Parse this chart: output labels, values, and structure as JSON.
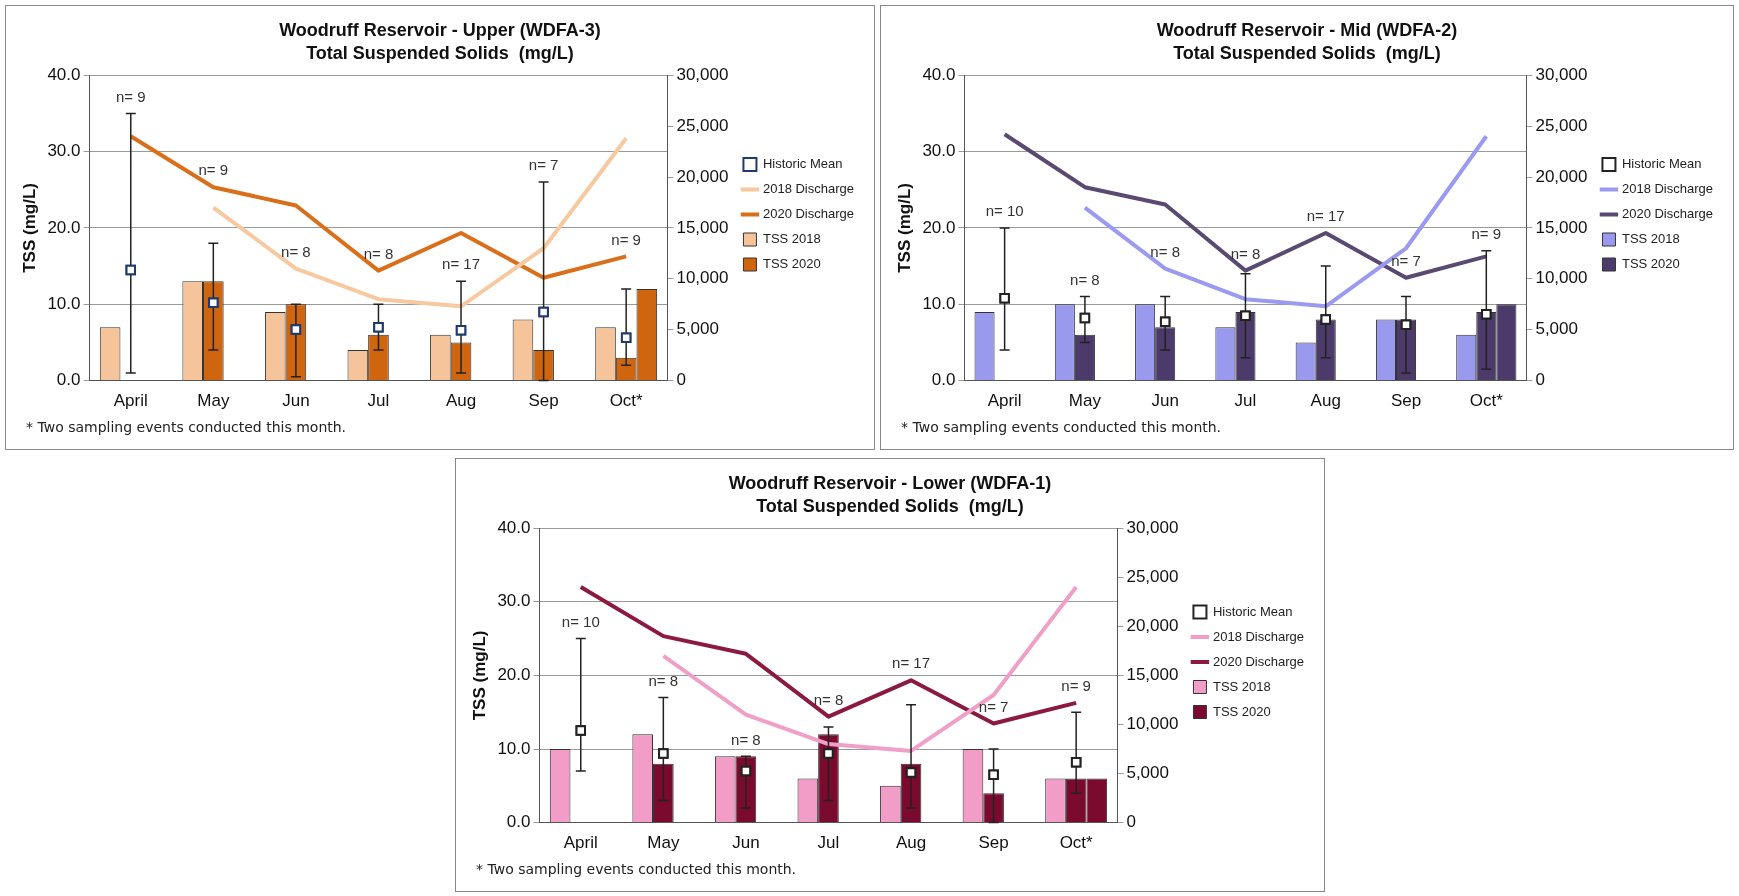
{
  "chart_data": [
    {
      "type": "bar",
      "title": "Woodruff Reservoir - Upper (WDFA-3)",
      "subtitle": "Total Suspended Solids  (mg/L)",
      "ylabel": "TSS (mg/L)",
      "categories": [
        "April",
        "May",
        "Jun",
        "Jul",
        "Aug",
        "Sep",
        "Oct*"
      ],
      "ylim": [
        0,
        40
      ],
      "yticks": [
        {
          "value": 0,
          "label": "0.0"
        },
        {
          "value": 10,
          "label": "10.0"
        },
        {
          "value": 20,
          "label": "20.0"
        },
        {
          "value": 30,
          "label": "30.0"
        },
        {
          "value": 40,
          "label": "40.0"
        }
      ],
      "y2lim": [
        0,
        30000
      ],
      "y2ticks": [
        {
          "value": 0,
          "label": "0"
        },
        {
          "value": 5000,
          "label": "5,000"
        },
        {
          "value": 10000,
          "label": "10,000"
        },
        {
          "value": 15000,
          "label": "15,000"
        },
        {
          "value": 20000,
          "label": "20,000"
        },
        {
          "value": 25000,
          "label": "25,000"
        },
        {
          "value": 30000,
          "label": "30,000"
        }
      ],
      "grid": "y",
      "legend": "right",
      "series": [
        {
          "name": "TSS 2018",
          "color": "#f5c49a",
          "values": [
            7,
            13,
            9,
            4,
            6,
            8,
            7
          ]
        },
        {
          "name": "TSS 2020",
          "color": "#d0650f",
          "values": [
            null,
            13,
            10,
            6,
            5,
            4,
            3
          ]
        },
        {
          "color": "#d0650f",
          "values": [
            null,
            null,
            null,
            null,
            null,
            null,
            12
          ]
        },
        {
          "name": "Historic Mean",
          "type": "scatter",
          "marker": "square",
          "color": "#1f3a6e",
          "x": [
            "April",
            "May",
            "Jun",
            "Jul",
            "Aug",
            "Sep",
            "Oct*"
          ],
          "values": [
            14.5,
            10.2,
            6.7,
            7,
            6.6,
            9,
            5.6
          ],
          "errors": [
            [
              1,
              35
            ],
            [
              4,
              18
            ],
            [
              0.5,
              10
            ],
            [
              4,
              10
            ],
            [
              1,
              13
            ],
            [
              0,
              26
            ],
            [
              2,
              12
            ]
          ]
        },
        {
          "name": "2018 Discharge",
          "type": "line",
          "axis": "y2",
          "color": "#f7c9a0",
          "values": [
            null,
            17000,
            11000,
            8000,
            7300,
            13000,
            23800
          ]
        },
        {
          "name": "2020 Discharge",
          "type": "line",
          "axis": "y2",
          "color": "#d96f1a",
          "values": [
            24000,
            19000,
            17200,
            10800,
            14500,
            10100,
            12200
          ]
        }
      ],
      "annotations": [
        "n= 9",
        "n= 9",
        "n= 8",
        "n= 8",
        "n= 17",
        "n= 7",
        "n= 9",
        "* Two sampling events conducted this month."
      ]
    },
    {
      "type": "bar",
      "title": "Woodruff Reservoir - Mid (WDFA-2)",
      "subtitle": "Total Suspended Solids  (mg/L)",
      "ylabel": "TSS (mg/L)",
      "categories": [
        "April",
        "May",
        "Jun",
        "Jul",
        "Aug",
        "Sep",
        "Oct*"
      ],
      "ylim": [
        0,
        40
      ],
      "yticks": [
        {
          "value": 0,
          "label": "0.0"
        },
        {
          "value": 10,
          "label": "10.0"
        },
        {
          "value": 20,
          "label": "20.0"
        },
        {
          "value": 30,
          "label": "30.0"
        },
        {
          "value": 40,
          "label": "40.0"
        }
      ],
      "y2lim": [
        0,
        30000
      ],
      "y2ticks": [
        {
          "value": 0,
          "label": "0"
        },
        {
          "value": 5000,
          "label": "5,000"
        },
        {
          "value": 10000,
          "label": "10,000"
        },
        {
          "value": 15000,
          "label": "15,000"
        },
        {
          "value": 20000,
          "label": "20,000"
        },
        {
          "value": 25000,
          "label": "25,000"
        },
        {
          "value": 30000,
          "label": "30,000"
        }
      ],
      "grid": "y",
      "legend": "right",
      "series": [
        {
          "name": "TSS 2018",
          "color": "#9999ee",
          "values": [
            9,
            10,
            10,
            7,
            5,
            8,
            6
          ]
        },
        {
          "name": "TSS 2020",
          "color": "#4b3a6a",
          "values": [
            null,
            6,
            7,
            9,
            8,
            8,
            9
          ]
        },
        {
          "color": "#4b3a6a",
          "values": [
            null,
            null,
            null,
            null,
            null,
            null,
            10
          ]
        },
        {
          "name": "Historic Mean",
          "type": "scatter",
          "marker": "square",
          "color": "#222222",
          "x": [
            "April",
            "May",
            "Jun",
            "Jul",
            "Aug",
            "Sep",
            "Oct*"
          ],
          "values": [
            10.8,
            8.2,
            7.7,
            8.5,
            8,
            7.3,
            8.7
          ],
          "errors": [
            [
              4,
              20
            ],
            [
              5,
              11
            ],
            [
              4,
              11
            ],
            [
              3,
              14
            ],
            [
              3,
              15
            ],
            [
              1,
              11
            ],
            [
              1.5,
              17
            ]
          ]
        },
        {
          "name": "2018 Discharge",
          "type": "line",
          "axis": "y2",
          "color": "#9a9af0",
          "values": [
            null,
            17000,
            11000,
            8000,
            7300,
            13000,
            24000
          ]
        },
        {
          "name": "2020 Discharge",
          "type": "line",
          "axis": "y2",
          "color": "#5a4a72",
          "values": [
            24200,
            19000,
            17300,
            10800,
            14500,
            10100,
            12200
          ]
        }
      ],
      "annotations": [
        "n= 10",
        "n= 8",
        "n= 8",
        "n= 8",
        "n= 17",
        "n= 7",
        "n= 9",
        "* Two sampling events conducted this month."
      ]
    },
    {
      "type": "bar",
      "title": "Woodruff Reservoir - Lower (WDFA-1)",
      "subtitle": "Total Suspended Solids  (mg/L)",
      "ylabel": "TSS (mg/L)",
      "categories": [
        "April",
        "May",
        "Jun",
        "Jul",
        "Aug",
        "Sep",
        "Oct*"
      ],
      "ylim": [
        0,
        40
      ],
      "yticks": [
        {
          "value": 0,
          "label": "0.0"
        },
        {
          "value": 10,
          "label": "10.0"
        },
        {
          "value": 20,
          "label": "20.0"
        },
        {
          "value": 30,
          "label": "30.0"
        },
        {
          "value": 40,
          "label": "40.0"
        }
      ],
      "y2lim": [
        0,
        30000
      ],
      "y2ticks": [
        {
          "value": 0,
          "label": "0"
        },
        {
          "value": 5000,
          "label": "5,000"
        },
        {
          "value": 10000,
          "label": "10,000"
        },
        {
          "value": 15000,
          "label": "15,000"
        },
        {
          "value": 20000,
          "label": "20,000"
        },
        {
          "value": 25000,
          "label": "25,000"
        },
        {
          "value": 30000,
          "label": "30,000"
        }
      ],
      "grid": "y",
      "legend": "right",
      "series": [
        {
          "name": "TSS 2018",
          "color": "#f29cc8",
          "values": [
            10,
            12,
            9,
            6,
            5,
            10,
            6
          ]
        },
        {
          "name": "TSS 2020",
          "color": "#7a0a2e",
          "values": [
            null,
            8,
            9,
            12,
            8,
            4,
            6
          ]
        },
        {
          "color": "#7a0a2e",
          "values": [
            null,
            null,
            null,
            null,
            null,
            null,
            6
          ]
        },
        {
          "name": "Historic Mean",
          "type": "scatter",
          "marker": "square",
          "color": "#222222",
          "x": [
            "April",
            "May",
            "Jun",
            "Jul",
            "Aug",
            "Sep",
            "Oct*"
          ],
          "values": [
            12.5,
            9.4,
            7,
            9.4,
            6.8,
            6.5,
            8.2
          ],
          "errors": [
            [
              7,
              25
            ],
            [
              3,
              17
            ],
            [
              2,
              9
            ],
            [
              3,
              13
            ],
            [
              2,
              16
            ],
            [
              0,
              10
            ],
            [
              4,
              15
            ]
          ]
        },
        {
          "name": "2018 Discharge",
          "type": "line",
          "axis": "y2",
          "color": "#f0a0c8",
          "values": [
            null,
            17000,
            11000,
            8000,
            7300,
            13000,
            24000
          ]
        },
        {
          "name": "2020 Discharge",
          "type": "line",
          "axis": "y2",
          "color": "#8b1a3e",
          "values": [
            24000,
            19000,
            17200,
            10800,
            14500,
            10100,
            12200
          ]
        }
      ],
      "annotations": [
        "n= 10",
        "n= 8",
        "n= 8",
        "n= 8",
        "n= 17",
        "n= 7",
        "n= 9",
        "* Two sampling events conducted this month."
      ]
    }
  ]
}
